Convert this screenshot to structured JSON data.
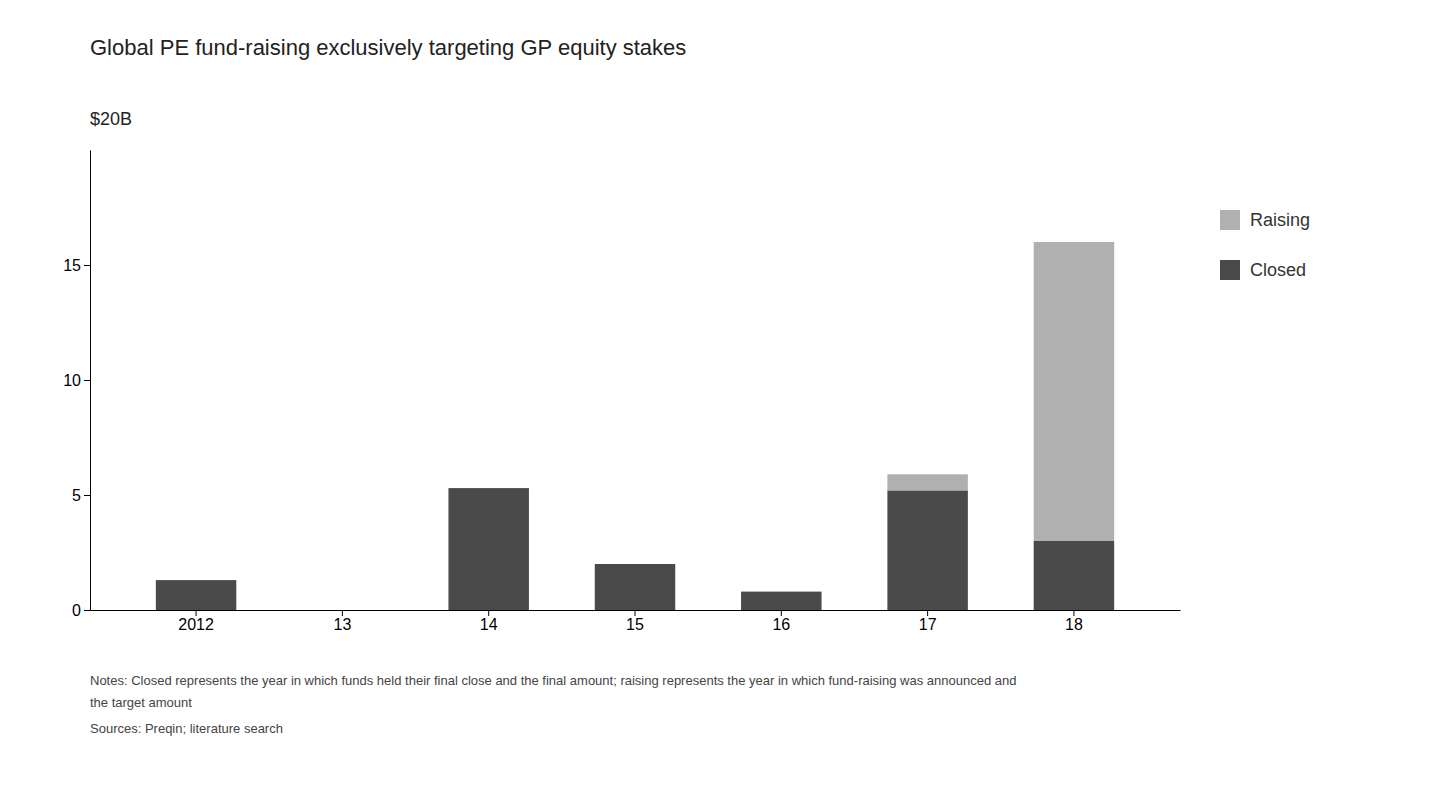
{
  "chart_data": {
    "type": "bar",
    "title": "Global PE fund-raising exclusively targeting GP equity stakes",
    "ylabel": "$20B",
    "categories": [
      "2012",
      "13",
      "14",
      "15",
      "16",
      "17",
      "18"
    ],
    "series": [
      {
        "name": "Closed",
        "color": "#4a4a4a",
        "values": [
          1.3,
          0.0,
          5.3,
          2.0,
          0.8,
          5.2,
          3.0
        ]
      },
      {
        "name": "Raising",
        "color": "#b0b0b0",
        "values": [
          0.0,
          0.0,
          0.0,
          0.0,
          0.0,
          0.7,
          13.0
        ]
      }
    ],
    "stacked": true,
    "ylim": [
      0,
      20
    ],
    "yticks": [
      0,
      5,
      10,
      15
    ],
    "grid": false,
    "legend": "right",
    "notes": [
      "Notes: Closed represents the year in which funds held their final close and the final amount; raising represents the year in which fund-raising was announced and",
      "the target amount"
    ],
    "source": "Sources: Preqin; literature search"
  }
}
